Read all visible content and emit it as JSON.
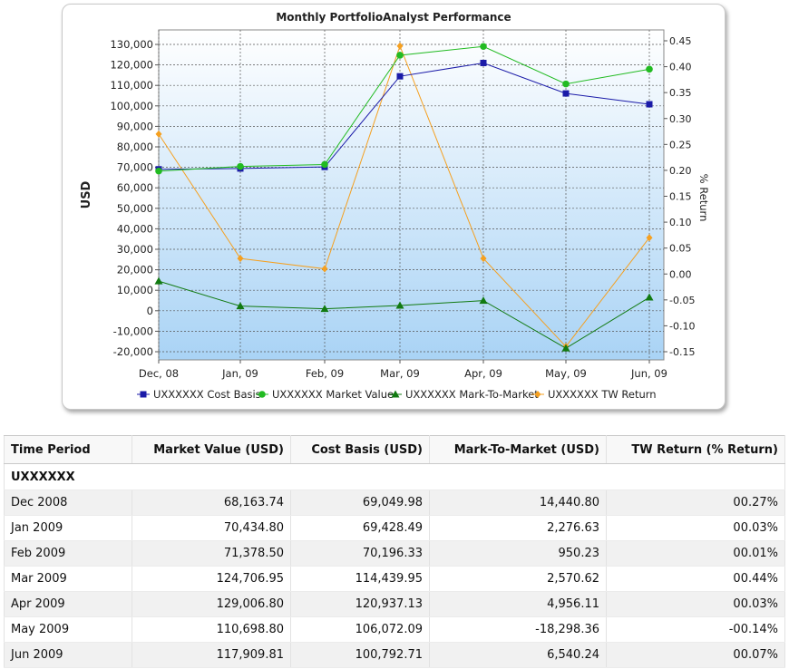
{
  "chart_data": {
    "type": "line",
    "title": "Monthly PortfolioAnalyst Performance",
    "ylabel": "USD",
    "y2label": "% Return",
    "categories": [
      "Dec, 08",
      "Jan, 09",
      "Feb, 09",
      "Mar, 09",
      "Apr, 09",
      "May, 09",
      "Jun, 09"
    ],
    "ylim": [
      -25000,
      135000
    ],
    "y_ticks": [
      "130,000",
      "120,000",
      "110,000",
      "100,000",
      "90,000",
      "80,000",
      "70,000",
      "60,000",
      "50,000",
      "40,000",
      "30,000",
      "20,000",
      "10,000",
      "0",
      "-10,000",
      "-20,000"
    ],
    "y2lim": [
      -0.175,
      0.46
    ],
    "y2_ticks": [
      "0.45",
      "0.40",
      "0.35",
      "0.30",
      "0.25",
      "0.20",
      "0.15",
      "0.10",
      "0.05",
      "0.00",
      "-0.05",
      "-0.10",
      "-0.15"
    ],
    "grid": true,
    "legend_position": "bottom",
    "series": [
      {
        "name": "UXXXXXX  Cost Basis",
        "axis": "left",
        "marker": "square",
        "color": "#1a1aa8",
        "values": [
          69049.98,
          69428.49,
          70196.33,
          114439.95,
          120937.13,
          106072.09,
          100792.71
        ]
      },
      {
        "name": "UXXXXXX  Market Value",
        "axis": "left",
        "marker": "circle",
        "color": "#22bb22",
        "values": [
          68163.74,
          70434.8,
          71378.5,
          124706.95,
          129006.8,
          110698.8,
          117909.81
        ]
      },
      {
        "name": "UXXXXXX  Mark-To-Market",
        "axis": "left",
        "marker": "triangle",
        "color": "#117a11",
        "values": [
          14440.8,
          2276.63,
          950.23,
          2570.62,
          4956.11,
          -18298.36,
          6540.24
        ]
      },
      {
        "name": "UXXXXXX  TW Return",
        "axis": "right",
        "marker": "diamond",
        "color": "#f5a020",
        "values": [
          0.27,
          0.03,
          0.01,
          0.44,
          0.03,
          -0.14,
          0.07
        ]
      }
    ]
  },
  "table": {
    "headers": [
      "Time Period",
      "Market Value (USD)",
      "Cost Basis (USD)",
      "Mark-To-Market (USD)",
      "TW Return (% Return)"
    ],
    "group_label": "UXXXXXX",
    "rows": [
      [
        "Dec 2008",
        "68,163.74",
        "69,049.98",
        "14,440.80",
        "00.27%"
      ],
      [
        "Jan 2009",
        "70,434.80",
        "69,428.49",
        "2,276.63",
        "00.03%"
      ],
      [
        "Feb 2009",
        "71,378.50",
        "70,196.33",
        "950.23",
        "00.01%"
      ],
      [
        "Mar 2009",
        "124,706.95",
        "114,439.95",
        "2,570.62",
        "00.44%"
      ],
      [
        "Apr 2009",
        "129,006.80",
        "120,937.13",
        "4,956.11",
        "00.03%"
      ],
      [
        "May 2009",
        "110,698.80",
        "106,072.09",
        "-18,298.36",
        "-00.14%"
      ],
      [
        "Jun 2009",
        "117,909.81",
        "100,792.71",
        "6,540.24",
        "00.07%"
      ]
    ]
  }
}
